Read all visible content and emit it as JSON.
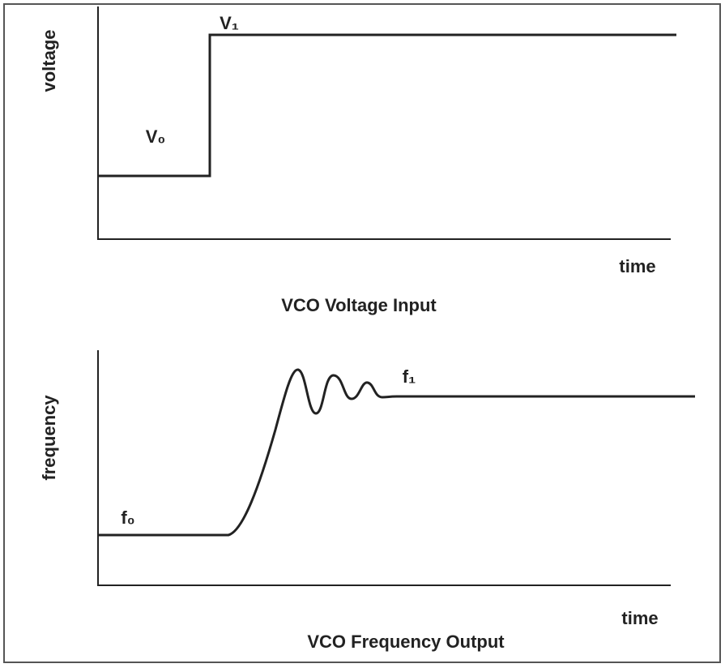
{
  "panels": [
    {
      "y_label": "voltage",
      "x_label": "time",
      "title": "VCO Voltage Input",
      "annotations": [
        "V₀",
        "V₁"
      ]
    },
    {
      "y_label": "frequency",
      "x_label": "time",
      "title": "VCO Frequency Output",
      "annotations": [
        "f₀",
        "f₁"
      ]
    }
  ]
}
